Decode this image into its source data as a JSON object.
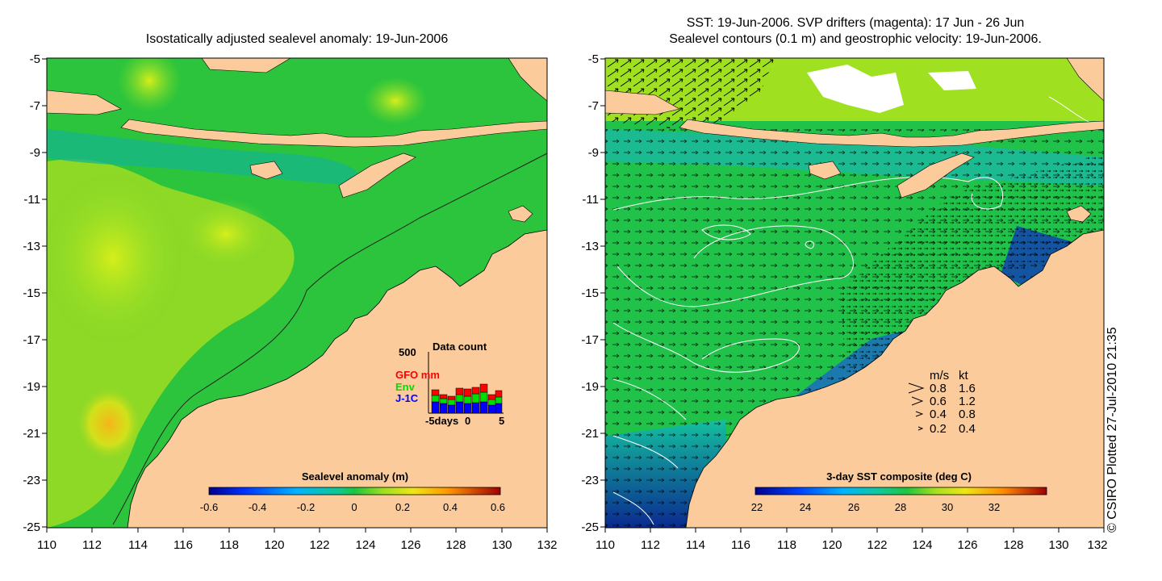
{
  "left_panel": {
    "title": "Isostatically adjusted sealevel anomaly: 19-Jun-2006",
    "y_ticks": [
      "-5",
      "-7",
      "-9",
      "-11",
      "-13",
      "-15",
      "-17",
      "-19",
      "-21",
      "-23",
      "-25"
    ],
    "x_ticks": [
      "110",
      "112",
      "114",
      "116",
      "118",
      "120",
      "122",
      "124",
      "126",
      "128",
      "130",
      "132"
    ],
    "colorbar": {
      "label": "Sealevel anomaly (m)",
      "ticks": [
        "-0.6",
        "-0.4",
        "-0.2",
        "0",
        "0.2",
        "0.4",
        "0.6"
      ]
    },
    "data_count": {
      "title": "Data count",
      "ymax": "500",
      "legend": {
        "gfo": "GFO mm",
        "env": "Env",
        "j1c": "J-1C"
      },
      "x_labels": {
        "left": "-5days",
        "mid": "0",
        "right": "5"
      },
      "colors": {
        "gfo": "#ff0000",
        "env": "#00dd00",
        "j1c": "#0000ff"
      }
    }
  },
  "right_panel": {
    "title_line1": "SST: 19-Jun-2006. SVP drifters (magenta): 17 Jun - 26 Jun",
    "title_line2": "Sealevel contours (0.1 m) and geostrophic velocity: 19-Jun-2006.",
    "y_ticks": [
      "-5",
      "-7",
      "-9",
      "-11",
      "-13",
      "-15",
      "-17",
      "-19",
      "-21",
      "-23",
      "-25"
    ],
    "x_ticks": [
      "110",
      "112",
      "114",
      "116",
      "118",
      "120",
      "122",
      "124",
      "126",
      "128",
      "130",
      "132"
    ],
    "colorbar": {
      "label": "3-day SST composite (deg C)",
      "ticks": [
        "22",
        "24",
        "26",
        "28",
        "30",
        "32"
      ]
    },
    "velocity_legend": {
      "header_ms": "m/s",
      "header_kt": "kt",
      "rows": [
        {
          "ms": "0.8",
          "kt": "1.6"
        },
        {
          "ms": "0.6",
          "kt": "1.2"
        },
        {
          "ms": "0.4",
          "kt": "0.8"
        },
        {
          "ms": "0.2",
          "kt": "0.4"
        }
      ]
    }
  },
  "credit": "© CSIRO Plotted 27-Jul-2010 21:35",
  "colors": {
    "land": "#fbcb9c",
    "ocean_mid": "#1ec53c",
    "ocean_high": "#b4e61e"
  }
}
